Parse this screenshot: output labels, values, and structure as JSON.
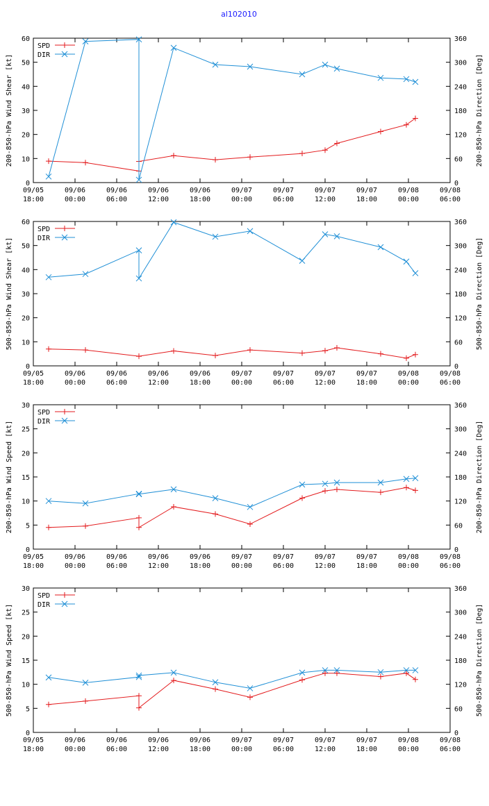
{
  "title": "al102010",
  "colors": {
    "spd": "#e31a1c",
    "dir": "#1f8fd6",
    "title": "#1a1aff"
  },
  "x_ticks": [
    {
      "t": 0,
      "l1": "09/05",
      "l2": "18:00"
    },
    {
      "t": 6,
      "l1": "09/06",
      "l2": "00:00"
    },
    {
      "t": 12,
      "l1": "09/06",
      "l2": "06:00"
    },
    {
      "t": 18,
      "l1": "09/06",
      "l2": "12:00"
    },
    {
      "t": 24,
      "l1": "09/06",
      "l2": "18:00"
    },
    {
      "t": 30,
      "l1": "09/07",
      "l2": "00:00"
    },
    {
      "t": 36,
      "l1": "09/07",
      "l2": "06:00"
    },
    {
      "t": 42,
      "l1": "09/07",
      "l2": "12:00"
    },
    {
      "t": 48,
      "l1": "09/07",
      "l2": "18:00"
    },
    {
      "t": 54,
      "l1": "09/08",
      "l2": "00:00"
    },
    {
      "t": 60,
      "l1": "09/08",
      "l2": "06:00"
    }
  ],
  "chart_data": [
    {
      "type": "line",
      "xlim": [
        0,
        60
      ],
      "ylabel": "200-850-hPa Wind Shear [kt]",
      "y2label": "200-850-hPa Direction [Deg]",
      "ylim": [
        0,
        60
      ],
      "yticks": [
        0,
        10,
        20,
        30,
        40,
        50,
        60
      ],
      "y2lim": [
        0,
        360
      ],
      "y2ticks": [
        0,
        60,
        120,
        180,
        240,
        300,
        360
      ],
      "series": [
        {
          "name": "SPD",
          "axis": "left",
          "x": [
            2.2,
            7.5,
            15.2,
            15.2,
            20.2,
            26.2,
            31.2,
            38.7,
            42,
            43.7,
            50,
            53.7,
            55
          ],
          "values": [
            8.9,
            8.3,
            4.8,
            8.8,
            11.2,
            9.5,
            10.6,
            12.1,
            13.5,
            16.3,
            21.2,
            24,
            26.7
          ]
        },
        {
          "name": "DIR",
          "axis": "right",
          "x": [
            2.2,
            7.5,
            15.2,
            15.2,
            20.2,
            26.2,
            31.2,
            38.7,
            42,
            43.7,
            50,
            53.7,
            55
          ],
          "values": [
            15,
            352,
            357,
            7,
            336,
            294,
            289,
            270,
            294,
            284,
            261,
            258,
            251
          ]
        }
      ]
    },
    {
      "type": "line",
      "xlim": [
        0,
        60
      ],
      "ylabel": "500-850-hPa Wind Shear [kt]",
      "y2label": "500-850-hPa Direction [Deg]",
      "ylim": [
        0,
        60
      ],
      "yticks": [
        0,
        10,
        20,
        30,
        40,
        50,
        60
      ],
      "y2lim": [
        0,
        360
      ],
      "y2ticks": [
        0,
        60,
        120,
        180,
        240,
        300,
        360
      ],
      "series": [
        {
          "name": "SPD",
          "axis": "left",
          "x": [
            2.2,
            7.5,
            15.2,
            15.2,
            20.2,
            26.2,
            31.2,
            38.7,
            42,
            43.7,
            50,
            53.7,
            55
          ],
          "values": [
            7,
            6.6,
            4,
            4,
            6.2,
            4.3,
            6.6,
            5.3,
            6.3,
            7.5,
            5,
            3.2,
            4.7
          ]
        },
        {
          "name": "DIR",
          "axis": "right",
          "x": [
            2.2,
            7.5,
            15.2,
            15.2,
            20.2,
            26.2,
            31.2,
            38.7,
            42,
            43.7,
            50,
            53.7,
            55
          ],
          "values": [
            221,
            229,
            288,
            218,
            358,
            322,
            336,
            262,
            328,
            323,
            296,
            260,
            231
          ]
        }
      ]
    },
    {
      "type": "line",
      "xlim": [
        0,
        60
      ],
      "ylabel": "200-850-hPa Wind Speed [kt]",
      "y2label": "200-850-hPa Direction [Deg]",
      "ylim": [
        0,
        30
      ],
      "yticks": [
        0,
        5,
        10,
        15,
        20,
        25,
        30
      ],
      "y2lim": [
        0,
        360
      ],
      "y2ticks": [
        0,
        60,
        120,
        180,
        240,
        300,
        360
      ],
      "series": [
        {
          "name": "SPD",
          "axis": "left",
          "x": [
            2.2,
            7.5,
            15.2,
            15.2,
            20.2,
            26.2,
            31.2,
            38.7,
            42,
            43.7,
            50,
            53.7,
            55
          ],
          "values": [
            4.5,
            4.8,
            6.5,
            4.5,
            8.8,
            7.3,
            5.2,
            10.6,
            12.1,
            12.4,
            11.8,
            12.8,
            12.2
          ]
        },
        {
          "name": "DIR",
          "axis": "right",
          "x": [
            2.2,
            7.5,
            15.2,
            15.2,
            20.2,
            26.2,
            31.2,
            38.7,
            42,
            43.7,
            50,
            53.7,
            55
          ],
          "values": [
            120,
            114,
            138,
            137,
            149,
            127,
            105,
            161,
            163,
            166,
            166,
            175,
            177
          ]
        }
      ]
    },
    {
      "type": "line",
      "xlim": [
        0,
        60
      ],
      "ylabel": "500-850-hPa Wind Speed [kt]",
      "y2label": "500-850-hPa Direction [Deg]",
      "ylim": [
        0,
        30
      ],
      "yticks": [
        0,
        5,
        10,
        15,
        20,
        25,
        30
      ],
      "y2lim": [
        0,
        360
      ],
      "y2ticks": [
        0,
        60,
        120,
        180,
        240,
        300,
        360
      ],
      "series": [
        {
          "name": "SPD",
          "axis": "left",
          "x": [
            2.2,
            7.5,
            15.2,
            15.2,
            20.2,
            26.2,
            31.2,
            38.7,
            42,
            43.7,
            50,
            53.7,
            55
          ],
          "values": [
            5.8,
            6.5,
            7.6,
            5.1,
            10.8,
            9,
            7.3,
            10.9,
            12.3,
            12.3,
            11.6,
            12.3,
            11
          ]
        },
        {
          "name": "DIR",
          "axis": "right",
          "x": [
            2.2,
            7.5,
            15.2,
            15.2,
            20.2,
            26.2,
            31.2,
            38.7,
            42,
            43.7,
            50,
            53.7,
            55
          ],
          "values": [
            137,
            124,
            138,
            142,
            149,
            125,
            110,
            149,
            155,
            155,
            150,
            155,
            155
          ]
        }
      ]
    }
  ]
}
